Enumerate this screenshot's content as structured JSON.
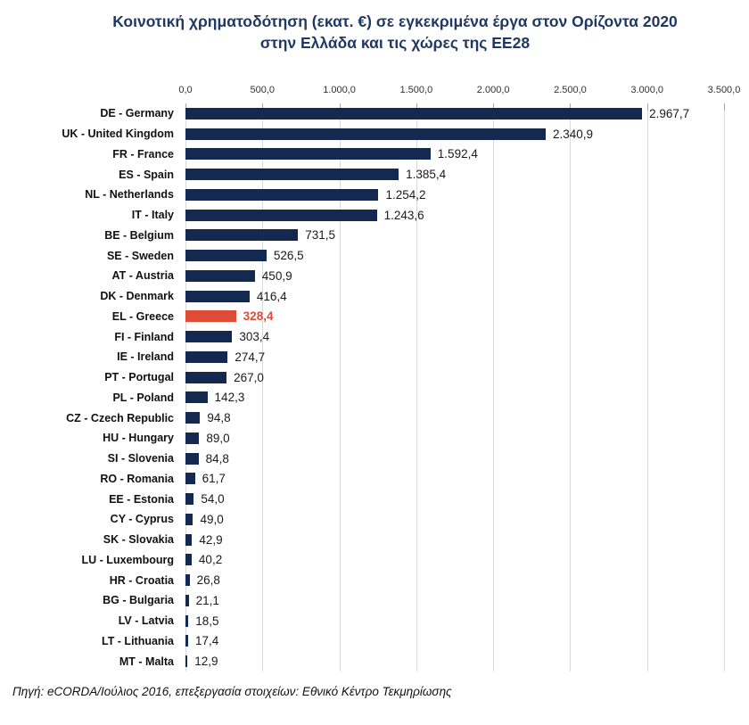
{
  "title": {
    "line1": "Κοινοτική χρηματοδότηση (εκατ. €) σε εγκεκριμένα έργα στον Ορίζοντα 2020",
    "line2": "στην Ελλάδα και τις χώρες της ΕΕ28"
  },
  "chart_data": {
    "type": "bar",
    "orientation": "horizontal",
    "title": "Κοινοτική χρηματοδότηση (εκατ. €) σε εγκεκριμένα έργα στον Ορίζοντα 2020 στην Ελλάδα και τις χώρες της ΕΕ28",
    "categories": [
      "DE - Germany",
      "UK - United Kingdom",
      "FR - France",
      "ES - Spain",
      "NL - Netherlands",
      "IT - Italy",
      "BE - Belgium",
      "SE - Sweden",
      "AT - Austria",
      "DK - Denmark",
      "EL - Greece",
      "FI - Finland",
      "IE - Ireland",
      "PT - Portugal",
      "PL - Poland",
      "CZ - Czech Republic",
      "HU - Hungary",
      "SI - Slovenia",
      "RO - Romania",
      "EE - Estonia",
      "CY - Cyprus",
      "SK - Slovakia",
      "LU - Luxembourg",
      "HR - Croatia",
      "BG - Bulgaria",
      "LV - Latvia",
      "LT - Lithuania",
      "MT - Malta"
    ],
    "values": [
      2967.7,
      2340.9,
      1592.4,
      1385.4,
      1254.2,
      1243.6,
      731.5,
      526.5,
      450.9,
      416.4,
      328.4,
      303.4,
      274.7,
      267.0,
      142.3,
      94.8,
      89.0,
      84.8,
      61.7,
      54.0,
      49.0,
      42.9,
      40.2,
      26.8,
      21.1,
      18.5,
      17.4,
      12.9
    ],
    "value_labels": [
      "2.967,7",
      "2.340,9",
      "1.592,4",
      "1.385,4",
      "1.254,2",
      "1.243,6",
      "731,5",
      "526,5",
      "450,9",
      "416,4",
      "328,4",
      "303,4",
      "274,7",
      "267,0",
      "142,3",
      "94,8",
      "89,0",
      "84,8",
      "61,7",
      "54,0",
      "49,0",
      "42,9",
      "40,2",
      "26,8",
      "21,1",
      "18,5",
      "17,4",
      "12,9"
    ],
    "highlight_index": 10,
    "highlight_category": "EL - Greece",
    "xlim": [
      0,
      3500
    ],
    "x_ticks": [
      "0,0",
      "500,0",
      "1.000,0",
      "1.500,0",
      "2.000,0",
      "2.500,0",
      "3.000,0",
      "3.500,0"
    ],
    "xlabel": "",
    "ylabel": "",
    "grid": "vertical",
    "legend": "none",
    "colors": {
      "bar": "#13294F",
      "highlight_bar": "#E04B35",
      "highlight_text": "#E04B35",
      "title": "#1F3864",
      "gridline": "#D9D9D9"
    }
  },
  "footer": {
    "source": "Πηγή: eCORDA/Ιούλιος 2016, επεξεργασία στοιχείων: Εθνικό Κέντρο Τεκμηρίωσης"
  }
}
